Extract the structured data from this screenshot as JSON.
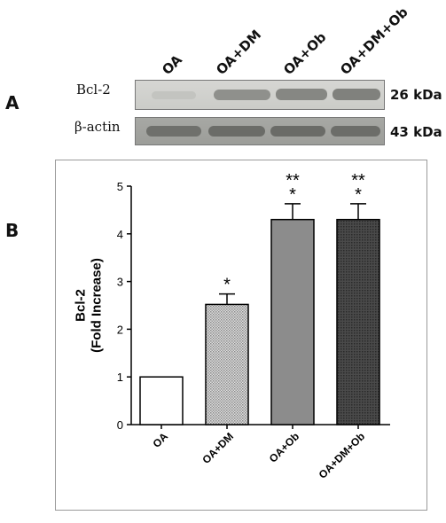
{
  "panel_labels": {
    "a": "A",
    "b": "B"
  },
  "blot": {
    "lanes": [
      "OA",
      "OA+DM",
      "OA+Ob",
      "OA+DM+Ob"
    ],
    "rows": [
      {
        "name": "Bcl-2",
        "kda": "26 kDa"
      },
      {
        "name": "β-actin",
        "kda": "43 kDa"
      }
    ]
  },
  "chart_data": {
    "type": "bar",
    "categories": [
      "OA",
      "OA+DM",
      "OA+Ob",
      "OA+DM+Ob"
    ],
    "values": [
      1.0,
      2.52,
      4.3,
      4.3
    ],
    "errors": [
      0.0,
      0.22,
      0.33,
      0.33
    ],
    "significance": [
      {
        "top": "",
        "bottom": ""
      },
      {
        "top": "",
        "bottom": "*"
      },
      {
        "top": "**",
        "bottom": "*"
      },
      {
        "top": "**",
        "bottom": "*"
      }
    ],
    "fills": [
      "white",
      "dotted-light",
      "gray",
      "dark"
    ],
    "ylabel": "Bcl-2\n(Fold Increase)",
    "ylim": [
      0,
      5
    ],
    "yticks": [
      0,
      1,
      2,
      3,
      4,
      5
    ],
    "grid": false,
    "legend": "none"
  }
}
